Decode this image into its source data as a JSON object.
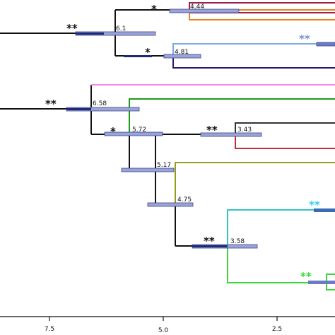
{
  "tree": {
    "node_ages": [
      "4.44",
      "6.1",
      "4.81",
      "6.58",
      "5.72",
      "3.43",
      "5.17",
      "4.75",
      "3.58"
    ],
    "support_marks": [
      "**",
      "*",
      "*",
      "**",
      "**",
      "*",
      "**",
      "**",
      "**",
      "**"
    ],
    "support_colors": {
      "default": "#111111",
      "blue": "#7a8fcf",
      "cyan": "#33d1e8",
      "green": "#33d633"
    }
  },
  "axis": {
    "tick_labels": [
      "7.5",
      "5.0",
      "2.5"
    ]
  }
}
